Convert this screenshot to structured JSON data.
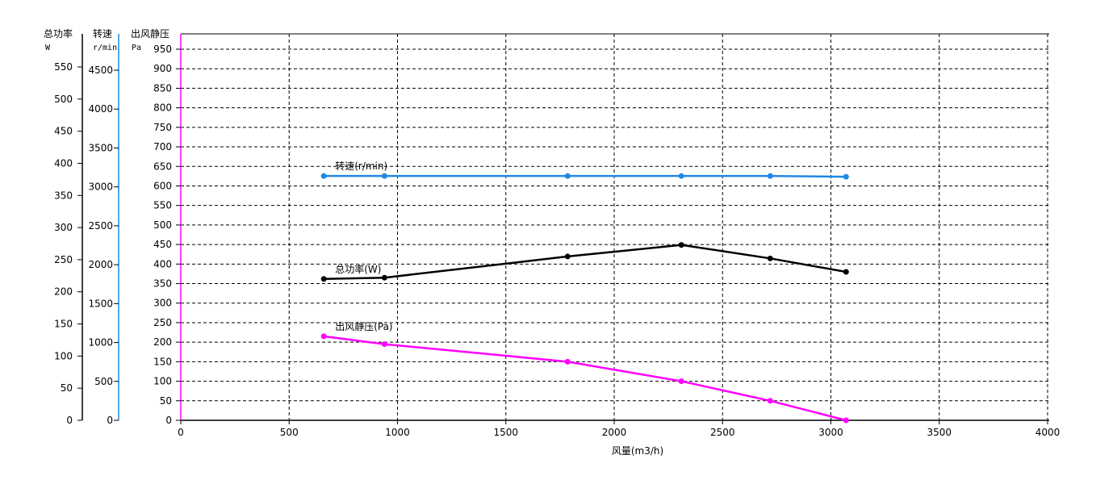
{
  "chart_data": {
    "type": "line",
    "xlabel": "风量(m3/h)",
    "xlim": [
      0,
      4000
    ],
    "xticks": [
      0,
      500,
      1000,
      1500,
      2000,
      2500,
      3000,
      3500,
      4000
    ],
    "grid": true,
    "axes": [
      {
        "id": "power",
        "title": "总功率",
        "unit": "W",
        "ylim": [
          0,
          550
        ],
        "ticks": [
          0,
          50,
          100,
          150,
          200,
          250,
          300,
          350,
          400,
          450,
          500,
          550
        ],
        "color": "#000000"
      },
      {
        "id": "speed",
        "title": "转速",
        "unit": "r/min",
        "ylim": [
          0,
          4500
        ],
        "ticks": [
          0,
          500,
          1000,
          1500,
          2000,
          2500,
          3000,
          3500,
          4000,
          4500
        ],
        "color": "#1e88e5"
      },
      {
        "id": "pressure",
        "title": "出风静压",
        "unit": "Pa",
        "ylim": [
          0,
          950
        ],
        "ticks": [
          0,
          50,
          100,
          150,
          200,
          250,
          300,
          350,
          400,
          450,
          500,
          550,
          600,
          650,
          700,
          750,
          800,
          850,
          900,
          950
        ],
        "color": "#ff00ff"
      }
    ],
    "x": [
      660,
      940,
      1785,
      2310,
      2720,
      3070
    ],
    "series": [
      {
        "name": "转速(r/min)",
        "axis": "speed",
        "color": "#1e88e5",
        "values": [
          3140,
          3140,
          3140,
          3140,
          3140,
          3130
        ]
      },
      {
        "name": "总功率(W)",
        "axis": "power",
        "color": "#000000",
        "values": [
          220,
          222,
          255,
          273,
          252,
          231
        ]
      },
      {
        "name": "出风静压(Pa)",
        "axis": "pressure",
        "color": "#ff00ff",
        "values": [
          215,
          195,
          150,
          100,
          50,
          0
        ]
      }
    ]
  }
}
